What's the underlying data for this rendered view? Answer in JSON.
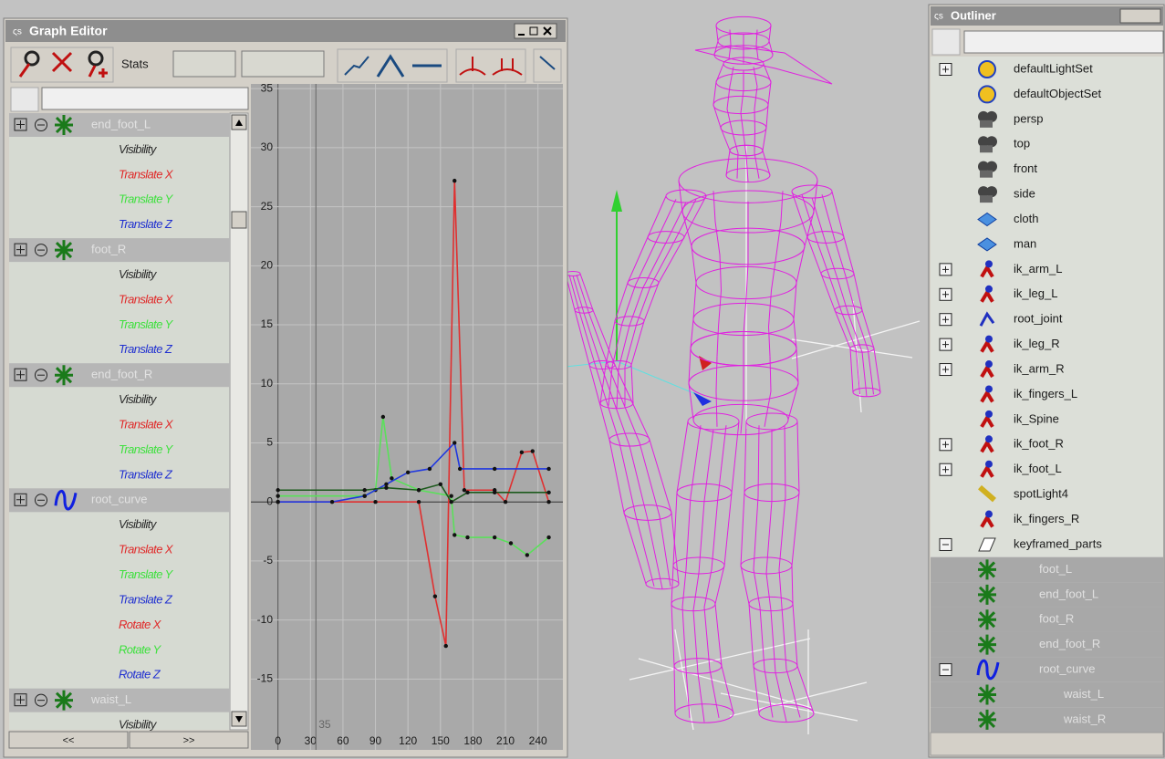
{
  "graph_editor": {
    "title": "Graph Editor",
    "stats_label": "Stats",
    "outline": [
      {
        "label": "end_foot_L",
        "attributes": [
          {
            "label": "Visibility",
            "color": "#2a2a2a"
          },
          {
            "label": "Translate X",
            "color": "#e02828"
          },
          {
            "label": "Translate Y",
            "color": "#3ee03e"
          },
          {
            "label": "Translate Z",
            "color": "#2030d0"
          }
        ]
      },
      {
        "label": "foot_R",
        "attributes": [
          {
            "label": "Visibility",
            "color": "#2a2a2a"
          },
          {
            "label": "Translate X",
            "color": "#e02828"
          },
          {
            "label": "Translate Y",
            "color": "#3ee03e"
          },
          {
            "label": "Translate Z",
            "color": "#2030d0"
          }
        ]
      },
      {
        "label": "end_foot_R",
        "attributes": [
          {
            "label": "Visibility",
            "color": "#2a2a2a"
          },
          {
            "label": "Translate X",
            "color": "#e02828"
          },
          {
            "label": "Translate Y",
            "color": "#3ee03e"
          },
          {
            "label": "Translate Z",
            "color": "#2030d0"
          }
        ]
      },
      {
        "label": "root_curve",
        "attributes": [
          {
            "label": "Visibility",
            "color": "#2a2a2a"
          },
          {
            "label": "Translate X",
            "color": "#e02828"
          },
          {
            "label": "Translate Y",
            "color": "#3ee03e"
          },
          {
            "label": "Translate Z",
            "color": "#2030d0"
          },
          {
            "label": "Rotate X",
            "color": "#e02828"
          },
          {
            "label": "Rotate Y",
            "color": "#3ee03e"
          },
          {
            "label": "Rotate Z",
            "color": "#2030d0"
          }
        ]
      },
      {
        "label": "waist_L",
        "attributes": [
          {
            "label": "Visibility",
            "color": "#2a2a2a"
          }
        ]
      }
    ],
    "scroll_buttons": [
      "<<",
      ">>"
    ],
    "graph": {
      "type": "line",
      "xlim": [
        -25,
        263
      ],
      "ylim": [
        -21,
        35.4
      ],
      "xticks": [
        0,
        30,
        60,
        90,
        120,
        150,
        180,
        210,
        240
      ],
      "yticks": [
        35,
        30,
        25,
        20,
        15,
        10,
        5,
        0,
        -5,
        -10,
        -15
      ],
      "grid": true,
      "current_time": 35,
      "series": [
        {
          "color": "#e03030",
          "x": [
            0,
            90,
            130,
            145,
            155,
            163,
            172,
            200,
            210,
            225,
            235,
            250
          ],
          "values": [
            0,
            0,
            0,
            -8,
            -12.2,
            27.2,
            1,
            1,
            0,
            4.2,
            4.3,
            0
          ]
        },
        {
          "color": "#5ae05a",
          "x": [
            0,
            80,
            90,
            97,
            105,
            130,
            160,
            163,
            175,
            200,
            215,
            230,
            250
          ],
          "values": [
            0.5,
            0.5,
            1,
            7.2,
            2,
            1,
            0.5,
            -2.8,
            -3,
            -3,
            -3.5,
            -4.5,
            -3
          ]
        },
        {
          "color": "#2038e0",
          "x": [
            0,
            50,
            80,
            100,
            120,
            140,
            163,
            168,
            200,
            250
          ],
          "values": [
            0,
            0,
            0.5,
            1.5,
            2.5,
            2.8,
            5,
            2.8,
            2.8,
            2.8
          ]
        },
        {
          "color": "#1d5a1d",
          "x": [
            0,
            80,
            100,
            130,
            150,
            160,
            175,
            200,
            250
          ],
          "values": [
            1,
            1,
            1.2,
            1,
            1.5,
            0,
            0.8,
            0.8,
            0.8
          ]
        }
      ]
    }
  },
  "outliner": {
    "title": "Outliner",
    "items": [
      {
        "label": "defaultLightSet",
        "expanded": false
      },
      {
        "label": "defaultObjectSet"
      },
      {
        "label": "persp"
      },
      {
        "label": "top"
      },
      {
        "label": "front"
      },
      {
        "label": "side"
      },
      {
        "label": "cloth"
      },
      {
        "label": "man"
      },
      {
        "label": "ik_arm_L",
        "expanded": false
      },
      {
        "label": "ik_leg_L",
        "expanded": false
      },
      {
        "label": "root_joint",
        "expanded": false
      },
      {
        "label": "ik_leg_R",
        "expanded": false
      },
      {
        "label": "ik_arm_R",
        "expanded": false
      },
      {
        "label": "ik_fingers_L"
      },
      {
        "label": "ik_Spine"
      },
      {
        "label": "ik_foot_R",
        "expanded": false
      },
      {
        "label": "ik_foot_L",
        "expanded": false
      },
      {
        "label": "spotLight4"
      },
      {
        "label": "ik_fingers_R"
      },
      {
        "label": "keyframed_parts",
        "expanded": true,
        "children": [
          {
            "label": "foot_L"
          },
          {
            "label": "end_foot_L"
          },
          {
            "label": "foot_R"
          },
          {
            "label": "end_foot_R"
          },
          {
            "label": "root_curve",
            "expanded": true,
            "children": [
              {
                "label": "waist_L"
              },
              {
                "label": "waist_R"
              }
            ]
          }
        ]
      }
    ]
  }
}
